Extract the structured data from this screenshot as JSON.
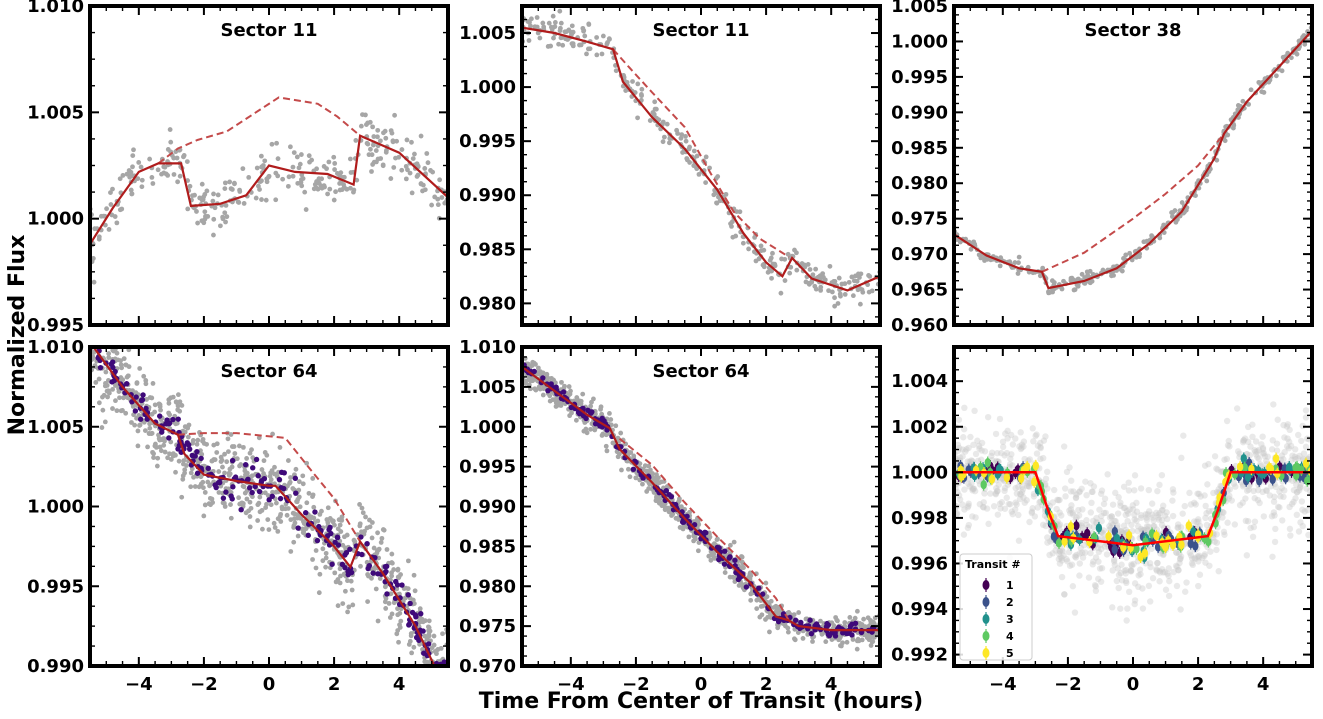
{
  "figure": {
    "ylabel": "Normalized Flux",
    "xlabel": "Time From Center of Transit (hours)"
  },
  "colors": {
    "raw_points": "#a6a6a6",
    "binned_points": "#3f0a7a",
    "model_line": "#b01c1c",
    "model_dashed": "#c44a4a",
    "faint_points": "#c8c8c8",
    "transit_model": "#ff0000",
    "viridis": [
      "#440154",
      "#3b528b",
      "#21918c",
      "#5ec962",
      "#fde725"
    ]
  },
  "chart_data": [
    {
      "type": "scatter",
      "title": "Sector 11",
      "xlim": [
        -5.5,
        5.5
      ],
      "ylim": [
        0.995,
        1.01
      ],
      "xticks": [
        -4,
        -2,
        0,
        2,
        4
      ],
      "xtick_labels": [],
      "yticks": [
        0.995,
        1.0,
        1.005,
        1.01
      ],
      "ytick_labels": [
        "0.995",
        "1.000",
        "1.005",
        "1.010"
      ],
      "binned_points": false,
      "scatter_sd": 0.0006,
      "series": [
        {
          "kind": "solid-model",
          "x": [
            -5.5,
            -4.8,
            -4.0,
            -3.4,
            -2.7,
            -2.4,
            -1.5,
            -0.7,
            0.0,
            0.8,
            1.8,
            2.6,
            2.8,
            4.0,
            5.5
          ],
          "y": [
            0.9988,
            1.0005,
            1.0022,
            1.0026,
            1.0026,
            1.0006,
            1.0007,
            1.0011,
            1.0025,
            1.0022,
            1.0021,
            1.0016,
            1.0039,
            1.0031,
            1.001
          ]
        },
        {
          "kind": "dashed-model",
          "x": [
            -3.4,
            -2.8,
            -2.2,
            -1.3,
            0.3,
            1.5,
            2.1,
            2.8
          ],
          "y": [
            1.0026,
            1.0033,
            1.0037,
            1.0041,
            1.0057,
            1.0054,
            1.0048,
            1.0039
          ]
        }
      ]
    },
    {
      "type": "scatter",
      "title": "Sector 11",
      "xlim": [
        -5.5,
        5.5
      ],
      "ylim": [
        0.978,
        1.0075
      ],
      "xticks": [
        -4,
        -2,
        0,
        2,
        4
      ],
      "xtick_labels": [],
      "yticks": [
        0.98,
        0.985,
        0.99,
        0.995,
        1.0,
        1.005
      ],
      "ytick_labels": [
        "0.980",
        "0.985",
        "0.990",
        "0.995",
        "1.000",
        "1.005"
      ],
      "binned_points": false,
      "scatter_sd": 0.0007,
      "series": [
        {
          "kind": "solid-model",
          "x": [
            -5.5,
            -4.5,
            -3.5,
            -2.7,
            -2.4,
            -1.5,
            -0.5,
            0.5,
            1.3,
            2.0,
            2.5,
            2.8,
            3.4,
            4.5,
            5.5
          ],
          "y": [
            1.0055,
            1.005,
            1.0042,
            1.0035,
            1.0005,
            0.9972,
            0.9943,
            0.9905,
            0.9865,
            0.9838,
            0.9825,
            0.9842,
            0.9823,
            0.9812,
            0.9825
          ]
        },
        {
          "kind": "dashed-model",
          "x": [
            -2.7,
            -2.2,
            -1.5,
            -0.5,
            0.3,
            1.0,
            1.8,
            2.7
          ],
          "y": [
            1.0035,
            1.0018,
            0.9995,
            0.9963,
            0.992,
            0.9885,
            0.986,
            0.9843
          ]
        }
      ]
    },
    {
      "type": "scatter",
      "title": "Sector 38",
      "xlim": [
        -5.5,
        5.5
      ],
      "ylim": [
        0.96,
        1.005
      ],
      "xticks": [
        -4,
        -2,
        0,
        2,
        4
      ],
      "xtick_labels": [],
      "yticks": [
        0.96,
        0.965,
        0.97,
        0.975,
        0.98,
        0.985,
        0.99,
        0.995,
        1.0,
        1.005
      ],
      "ytick_labels": [
        "0.960",
        "0.965",
        "0.970",
        "0.975",
        "0.980",
        "0.985",
        "0.990",
        "0.995",
        "1.000",
        "1.005"
      ],
      "binned_points": false,
      "scatter_sd": 0.0005,
      "series": [
        {
          "kind": "solid-model",
          "x": [
            -5.5,
            -4.5,
            -3.5,
            -2.8,
            -2.6,
            -1.5,
            -0.5,
            0.5,
            1.5,
            2.5,
            2.8,
            3.5,
            4.5,
            5.5
          ],
          "y": [
            0.9728,
            0.9698,
            0.968,
            0.9675,
            0.9652,
            0.9662,
            0.968,
            0.9715,
            0.976,
            0.9835,
            0.987,
            0.9915,
            0.9965,
            1.0015
          ]
        },
        {
          "kind": "dashed-model",
          "x": [
            -2.8,
            -1.5,
            0.0,
            1.0,
            2.0,
            2.8
          ],
          "y": [
            0.9675,
            0.9702,
            0.975,
            0.9785,
            0.9825,
            0.987
          ]
        }
      ]
    },
    {
      "type": "scatter",
      "title": "Sector 64",
      "xlim": [
        -5.5,
        5.5
      ],
      "ylim": [
        0.99,
        1.01
      ],
      "xticks": [
        -4,
        -2,
        0,
        2,
        4
      ],
      "xtick_labels": [],
      "yticks": [
        0.99,
        0.995,
        1.0,
        1.005,
        1.01
      ],
      "ytick_labels": [
        "0.990",
        "0.995",
        "1.000",
        "1.005",
        "1.010"
      ],
      "binned_points": true,
      "scatter_sd": 0.0013,
      "series": [
        {
          "kind": "solid-model",
          "x": [
            -5.5,
            -4.5,
            -3.5,
            -2.8,
            -2.6,
            -2.0,
            -1.0,
            0.0,
            0.2,
            1.0,
            2.0,
            2.5,
            2.8,
            3.5,
            4.5,
            5.2
          ],
          "y": [
            1.0103,
            1.0075,
            1.0052,
            1.0045,
            1.0033,
            1.002,
            1.0016,
            1.0013,
            1.0013,
            0.9995,
            0.9975,
            0.9962,
            0.9978,
            0.9958,
            0.9925,
            0.9895
          ]
        },
        {
          "kind": "dashed-model",
          "x": [
            -2.8,
            -2.0,
            -1.0,
            0.5,
            1.2,
            2.0,
            2.8
          ],
          "y": [
            1.0045,
            1.0046,
            1.0046,
            1.0043,
            1.0025,
            1.0005,
            0.9978
          ]
        }
      ]
    },
    {
      "type": "scatter",
      "title": "Sector 64",
      "xlim": [
        -5.5,
        5.5
      ],
      "ylim": [
        0.97,
        1.01
      ],
      "xticks": [
        -4,
        -2,
        0,
        2,
        4
      ],
      "xtick_labels": [],
      "yticks": [
        0.97,
        0.975,
        0.98,
        0.985,
        0.99,
        0.995,
        1.0,
        1.005,
        1.01
      ],
      "ytick_labels": [
        "0.970",
        "0.975",
        "0.980",
        "0.985",
        "0.990",
        "0.995",
        "1.000",
        "1.005",
        "1.010"
      ],
      "binned_points": true,
      "scatter_sd": 0.0009,
      "series": [
        {
          "kind": "solid-model",
          "x": [
            -5.5,
            -4.5,
            -3.5,
            -2.8,
            -2.5,
            -1.5,
            -0.5,
            0.5,
            1.5,
            2.3,
            2.7,
            3.0,
            4.0,
            5.5
          ],
          "y": [
            1.0075,
            1.0045,
            1.0015,
            0.9998,
            0.9972,
            0.993,
            0.9885,
            0.9843,
            0.9805,
            0.9762,
            0.9757,
            0.975,
            0.9745,
            0.9745
          ]
        },
        {
          "kind": "dashed-model",
          "x": [
            -2.5,
            -1.5,
            -0.5,
            0.5,
            1.5,
            2.3,
            2.7
          ],
          "y": [
            0.9985,
            0.9952,
            0.9905,
            0.9862,
            0.9822,
            0.9785,
            0.9757
          ]
        }
      ]
    },
    {
      "type": "scatter",
      "title": "",
      "xlim": [
        -5.5,
        5.5
      ],
      "ylim": [
        0.9915,
        1.0055
      ],
      "xticks": [
        -4,
        -2,
        0,
        2,
        4
      ],
      "xtick_labels": [],
      "yticks": [
        0.992,
        0.994,
        0.996,
        0.998,
        1.0,
        1.002,
        1.004
      ],
      "ytick_labels": [
        "0.992",
        "0.994",
        "0.996",
        "0.998",
        "1.000",
        "1.002",
        "1.004"
      ],
      "transit_model": {
        "x": [
          -5.5,
          -3.0,
          -2.6,
          -2.3,
          0.0,
          2.3,
          2.6,
          3.0,
          5.5
        ],
        "y": [
          1.0,
          1.0,
          0.9983,
          0.9972,
          0.9968,
          0.9972,
          0.9983,
          1.0,
          1.0
        ]
      },
      "legend": {
        "title": "Transit #",
        "placement": "lower-left",
        "entries": [
          "1",
          "2",
          "3",
          "4",
          "5"
        ]
      }
    }
  ],
  "shared_xtick_labels": [
    "−4",
    "−2",
    "0",
    "2",
    "4"
  ]
}
